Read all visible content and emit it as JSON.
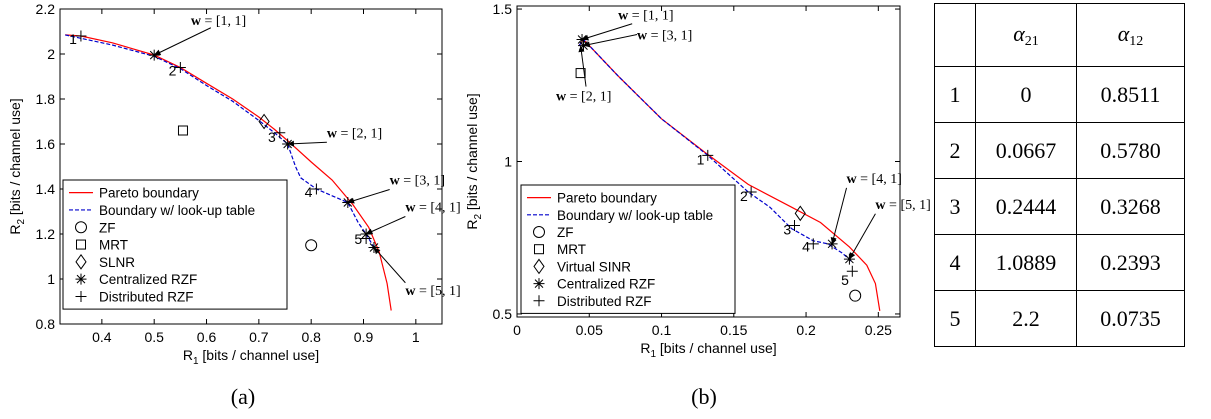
{
  "chart_data": [
    {
      "type": "line",
      "panel": "(a)",
      "xlabel": "R",
      "xlabel_sub": "1",
      "xlabel_unit": " [bits / channel use]",
      "ylabel": "R",
      "ylabel_sub": "2",
      "ylabel_unit": " [bits / channel use]",
      "xlim": [
        0.32,
        1.05
      ],
      "ylim": [
        0.8,
        2.2
      ],
      "xticks": [
        0.4,
        0.5,
        0.6,
        0.7,
        0.8,
        0.9,
        1
      ],
      "xtick_labels": [
        "0.4",
        "0.5",
        "0.6",
        "0.7",
        "0.8",
        "0.9",
        "1"
      ],
      "yticks": [
        0.8,
        1,
        1.2,
        1.4,
        1.6,
        1.8,
        2,
        2.2
      ],
      "ytick_labels": [
        "0.8",
        "1",
        "1.2",
        "1.4",
        "1.6",
        "1.8",
        "2",
        "2.2"
      ],
      "grid": false,
      "legend_position": "bottom-left",
      "series": [
        {
          "name": "Pareto boundary",
          "kind": "line",
          "style": "solid",
          "color": "#ff0000",
          "points": [
            [
              0.33,
              2.085
            ],
            [
              0.36,
              2.08
            ],
            [
              0.42,
              2.05
            ],
            [
              0.5,
              1.995
            ],
            [
              0.55,
              1.94
            ],
            [
              0.6,
              1.87
            ],
            [
              0.65,
              1.8
            ],
            [
              0.7,
              1.72
            ],
            [
              0.73,
              1.665
            ],
            [
              0.76,
              1.605
            ],
            [
              0.8,
              1.52
            ],
            [
              0.84,
              1.44
            ],
            [
              0.88,
              1.33
            ],
            [
              0.91,
              1.23
            ],
            [
              0.93,
              1.12
            ],
            [
              0.945,
              0.98
            ],
            [
              0.953,
              0.86
            ]
          ]
        },
        {
          "name": "Boundary w/ look-up table",
          "kind": "line",
          "style": "dashed",
          "color": "#0000cc",
          "points": [
            [
              0.33,
              2.085
            ],
            [
              0.36,
              2.07
            ],
            [
              0.42,
              2.04
            ],
            [
              0.5,
              1.99
            ],
            [
              0.55,
              1.935
            ],
            [
              0.6,
              1.86
            ],
            [
              0.65,
              1.79
            ],
            [
              0.7,
              1.705
            ],
            [
              0.73,
              1.65
            ],
            [
              0.755,
              1.6
            ],
            [
              0.77,
              1.5
            ],
            [
              0.78,
              1.45
            ],
            [
              0.81,
              1.4
            ],
            [
              0.84,
              1.37
            ],
            [
              0.87,
              1.34
            ],
            [
              0.89,
              1.25
            ],
            [
              0.905,
              1.2
            ],
            [
              0.92,
              1.14
            ]
          ]
        },
        {
          "name": "ZF",
          "kind": "marker",
          "marker": "circle",
          "points": [
            [
              0.8,
              1.15
            ]
          ]
        },
        {
          "name": "MRT",
          "kind": "marker",
          "marker": "square",
          "points": [
            [
              0.555,
              1.66
            ]
          ]
        },
        {
          "name": "SLNR",
          "kind": "marker",
          "marker": "diamond",
          "points": [
            [
              0.71,
              1.7
            ]
          ]
        },
        {
          "name": "Centralized RZF",
          "kind": "marker",
          "marker": "asterisk",
          "points": [
            [
              0.5,
              1.995
            ],
            [
              0.755,
              1.6
            ],
            [
              0.87,
              1.34
            ],
            [
              0.905,
              1.2
            ],
            [
              0.92,
              1.14
            ]
          ]
        },
        {
          "name": "Distributed RZF",
          "kind": "marker",
          "marker": "plus",
          "points": [
            [
              0.36,
              2.08
            ],
            [
              0.55,
              1.94
            ],
            [
              0.74,
              1.65
            ],
            [
              0.81,
              1.4
            ],
            [
              0.905,
              1.18
            ]
          ]
        }
      ],
      "point_labels": [
        {
          "text": "1",
          "x": 0.345,
          "y": 2.045
        },
        {
          "text": "2",
          "x": 0.535,
          "y": 1.905
        },
        {
          "text": "3",
          "x": 0.725,
          "y": 1.61
        },
        {
          "text": "4",
          "x": 0.795,
          "y": 1.365
        },
        {
          "text": "5",
          "x": 0.89,
          "y": 1.155
        }
      ],
      "annotations": [
        {
          "text": "w = [1, 1]",
          "x": 0.57,
          "y": 2.13,
          "point": [
            0.5,
            1.995
          ]
        },
        {
          "text": "w = [2, 1]",
          "x": 0.83,
          "y": 1.63,
          "point": [
            0.755,
            1.6
          ]
        },
        {
          "text": "w = [3, 1]",
          "x": 0.95,
          "y": 1.42,
          "point": [
            0.87,
            1.34
          ]
        },
        {
          "text": "w = [4, 1]",
          "x": 0.98,
          "y": 1.3,
          "point": [
            0.905,
            1.2
          ]
        },
        {
          "text": "w = [5, 1]",
          "x": 0.98,
          "y": 0.93,
          "point": [
            0.92,
            1.14
          ]
        }
      ]
    },
    {
      "type": "line",
      "panel": "(b)",
      "xlabel": "R",
      "xlabel_sub": "1",
      "xlabel_unit": " [bits / channel use]",
      "ylabel": "R",
      "ylabel_sub": "2",
      "ylabel_unit": " [bits / channel use]",
      "xlim": [
        0,
        0.265
      ],
      "ylim": [
        0.49,
        1.51
      ],
      "xticks": [
        0,
        0.05,
        0.1,
        0.15,
        0.2,
        0.25
      ],
      "xtick_labels": [
        "0",
        "0.05",
        "0.1",
        "0.15",
        "0.2",
        "0.25"
      ],
      "yticks": [
        0.5,
        1,
        1.5
      ],
      "ytick_labels": [
        "0.5",
        "1",
        "1.5"
      ],
      "grid": false,
      "legend_position": "bottom-left",
      "series": [
        {
          "name": "Pareto boundary",
          "kind": "line",
          "style": "solid",
          "color": "#ff0000",
          "points": [
            [
              0.043,
              1.38
            ],
            [
              0.046,
              1.4
            ],
            [
              0.052,
              1.37
            ],
            [
              0.07,
              1.28
            ],
            [
              0.1,
              1.14
            ],
            [
              0.13,
              1.03
            ],
            [
              0.16,
              0.925
            ],
            [
              0.19,
              0.85
            ],
            [
              0.21,
              0.8
            ],
            [
              0.23,
              0.72
            ],
            [
              0.242,
              0.66
            ],
            [
              0.248,
              0.6
            ],
            [
              0.251,
              0.51
            ]
          ]
        },
        {
          "name": "Boundary w/ look-up table",
          "kind": "line",
          "style": "dashed",
          "color": "#0000cc",
          "points": [
            [
              0.043,
              1.38
            ],
            [
              0.046,
              1.4
            ],
            [
              0.052,
              1.37
            ],
            [
              0.07,
              1.28
            ],
            [
              0.1,
              1.14
            ],
            [
              0.132,
              1.02
            ],
            [
              0.16,
              0.9
            ],
            [
              0.175,
              0.85
            ],
            [
              0.19,
              0.78
            ],
            [
              0.205,
              0.74
            ],
            [
              0.215,
              0.73
            ],
            [
              0.225,
              0.7
            ],
            [
              0.232,
              0.67
            ]
          ]
        },
        {
          "name": "ZF",
          "kind": "marker",
          "marker": "circle",
          "points": [
            [
              0.234,
              0.56
            ]
          ]
        },
        {
          "name": "MRT",
          "kind": "marker",
          "marker": "square",
          "points": [
            [
              0.044,
              1.29
            ]
          ]
        },
        {
          "name": "Virtual SINR",
          "kind": "marker",
          "marker": "diamond",
          "points": [
            [
              0.196,
              0.83
            ]
          ]
        },
        {
          "name": "Centralized RZF",
          "kind": "marker",
          "marker": "asterisk",
          "points": [
            [
              0.045,
              1.4
            ],
            [
              0.046,
              1.38
            ],
            [
              0.218,
              0.73
            ],
            [
              0.23,
              0.68
            ]
          ]
        },
        {
          "name": "Distributed RZF",
          "kind": "marker",
          "marker": "plus",
          "points": [
            [
              0.132,
              1.02
            ],
            [
              0.162,
              0.9
            ],
            [
              0.192,
              0.79
            ],
            [
              0.205,
              0.73
            ],
            [
              0.232,
              0.64
            ]
          ]
        }
      ],
      "point_labels": [
        {
          "text": "1",
          "x": 0.127,
          "y": 0.99
        },
        {
          "text": "2",
          "x": 0.157,
          "y": 0.87
        },
        {
          "text": "3",
          "x": 0.187,
          "y": 0.76
        },
        {
          "text": "4",
          "x": 0.2,
          "y": 0.705
        },
        {
          "text": "5",
          "x": 0.227,
          "y": 0.595
        }
      ],
      "annotations": [
        {
          "text": "w = [1, 1]",
          "x": 0.07,
          "y": 1.465,
          "point": [
            0.045,
            1.4
          ]
        },
        {
          "text": "w = [3, 1]",
          "x": 0.083,
          "y": 1.4,
          "point": [
            0.046,
            1.38
          ]
        },
        {
          "text": "w = [2, 1]",
          "x": 0.027,
          "y": 1.2,
          "point": [
            0.044,
            1.38
          ]
        },
        {
          "text": "w = [4, 1]",
          "x": 0.228,
          "y": 0.93,
          "point": [
            0.218,
            0.73
          ]
        },
        {
          "text": "w = [5, 1]",
          "x": 0.248,
          "y": 0.845,
          "point": [
            0.23,
            0.68
          ]
        }
      ]
    },
    {
      "type": "table",
      "columns": [
        "",
        "α21",
        "α12"
      ],
      "column_symbols": [
        {
          "base": "",
          "sub": ""
        },
        {
          "base": "α",
          "sub": "21"
        },
        {
          "base": "α",
          "sub": "12"
        }
      ],
      "rows": [
        [
          "1",
          "0",
          "0.8511"
        ],
        [
          "2",
          "0.0667",
          "0.5780"
        ],
        [
          "3",
          "0.2444",
          "0.3268"
        ],
        [
          "4",
          "1.0889",
          "0.2393"
        ],
        [
          "5",
          "2.2",
          "0.0735"
        ]
      ]
    }
  ],
  "captions": {
    "a": "(a)",
    "b": "(b)"
  }
}
